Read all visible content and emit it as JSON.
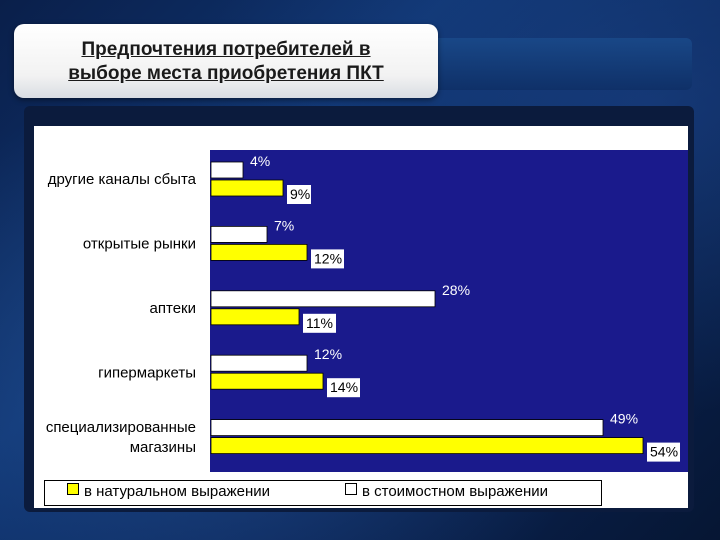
{
  "slide": {
    "title_line1": "Предпочтения потребителей в",
    "title_line2": "выборе места приобретения ПКТ"
  },
  "colors": {
    "plot_background": "#1a1a8c",
    "series_natural": "#ffff00",
    "series_value": "#ffffff",
    "label_color": "#ffffff"
  },
  "chart_data": {
    "type": "bar",
    "orientation": "horizontal",
    "categories": [
      [
        "другие каналы сбыта"
      ],
      [
        "открытые рынки"
      ],
      [
        "аптеки"
      ],
      [
        "гипермаркеты"
      ],
      [
        "специализированные",
        "магазины"
      ]
    ],
    "series": [
      {
        "name": "в стоимостном выражении",
        "values": [
          4,
          7,
          28,
          12,
          49
        ],
        "labels": [
          "4%",
          "7%",
          "28%",
          "12%",
          "49%"
        ],
        "color": "#ffffff"
      },
      {
        "name": "в натуральном выражении",
        "values": [
          9,
          12,
          11,
          14,
          54
        ],
        "labels": [
          "9%",
          "12%",
          "11%",
          "14%",
          "54%"
        ],
        "color": "#ffff00"
      }
    ],
    "xlim": [
      0,
      60
    ],
    "grid": false,
    "legend_position": "bottom"
  }
}
